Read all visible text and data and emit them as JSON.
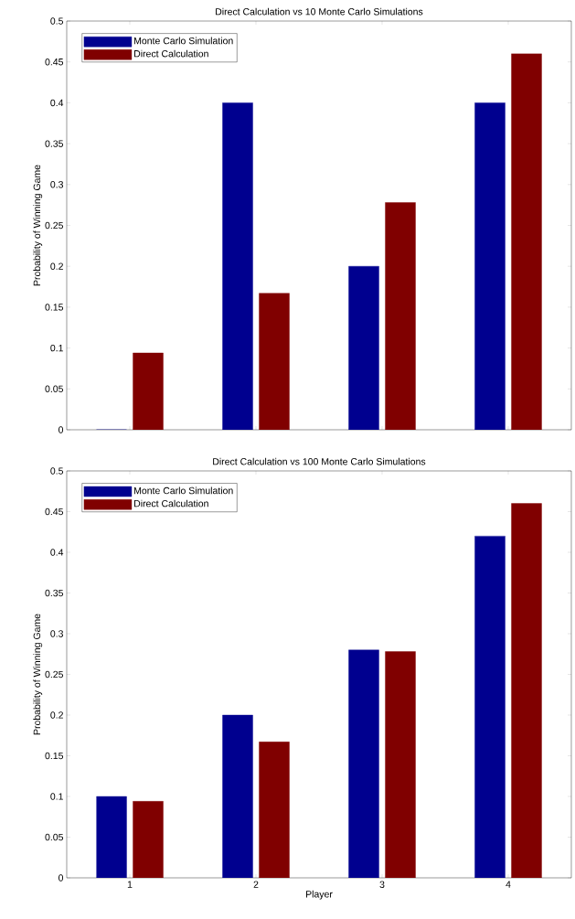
{
  "chart_data": [
    {
      "type": "bar",
      "title": "Direct Calculation vs 10 Monte Carlo Simulations",
      "ylabel": "Probability of Winning Game",
      "categories": [
        "1",
        "2",
        "3",
        "4"
      ],
      "tick_labels": "y",
      "legend": "top left",
      "ylim": [
        0,
        0.5
      ],
      "yticks": [
        0,
        0.05,
        0.1,
        0.15,
        0.2,
        0.25,
        0.3,
        0.35,
        0.4,
        0.45,
        0.5
      ],
      "series": [
        {
          "name": "Monte Carlo Simulation",
          "color": "#00008f",
          "values": [
            0,
            0.4,
            0.2,
            0.4
          ]
        },
        {
          "name": "Direct Calculation",
          "color": "#800000",
          "values": [
            0.094,
            0.167,
            0.278,
            0.46
          ]
        }
      ]
    },
    {
      "type": "bar",
      "title": "Direct Calculation vs 100 Monte Carlo Simulations",
      "xlabel": "Player",
      "ylabel": "Probability of Winning Game",
      "categories": [
        "1",
        "2",
        "3",
        "4"
      ],
      "legend": "top left",
      "ylim": [
        0,
        0.5
      ],
      "yticks": [
        0,
        0.05,
        0.1,
        0.15,
        0.2,
        0.25,
        0.3,
        0.35,
        0.4,
        0.45,
        0.5
      ],
      "series": [
        {
          "name": "Monte Carlo Simulation",
          "color": "#00008f",
          "values": [
            0.1,
            0.2,
            0.28,
            0.42
          ]
        },
        {
          "name": "Direct Calculation",
          "color": "#800000",
          "values": [
            0.094,
            0.167,
            0.278,
            0.46
          ]
        }
      ]
    }
  ]
}
